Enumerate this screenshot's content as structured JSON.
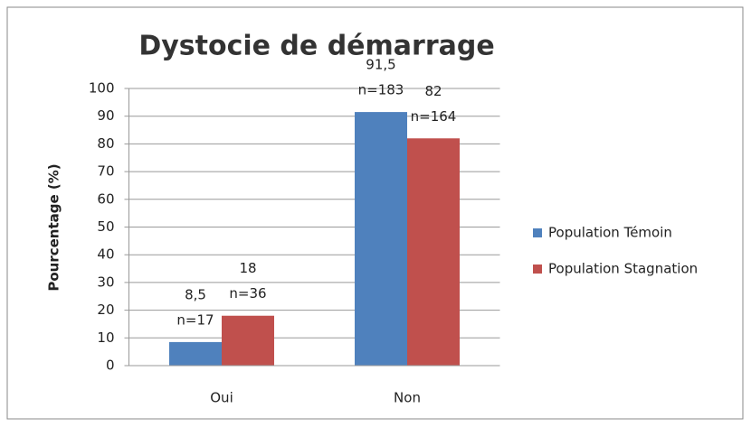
{
  "chart_data": {
    "type": "bar",
    "title": "Dystocie de démarrage",
    "y_label": "Pourcentage (%)",
    "categories": [
      "Oui",
      "Non"
    ],
    "series": [
      {
        "name": "Population Témoin",
        "color": "#4f81bd",
        "values": [
          8.5,
          91.5
        ],
        "value_labels": [
          "8,5",
          "91,5"
        ],
        "n_labels": [
          "n=17",
          "n=183"
        ]
      },
      {
        "name": "Population Stagnation",
        "color": "#c0504d",
        "values": [
          18,
          82
        ],
        "value_labels": [
          "18",
          "82"
        ],
        "n_labels": [
          "n=36",
          "n=164"
        ]
      }
    ],
    "ylim": [
      0,
      100
    ],
    "yticks": [
      0,
      10,
      20,
      30,
      40,
      50,
      60,
      70,
      80,
      90,
      100
    ],
    "grid": true,
    "legend": "right"
  }
}
